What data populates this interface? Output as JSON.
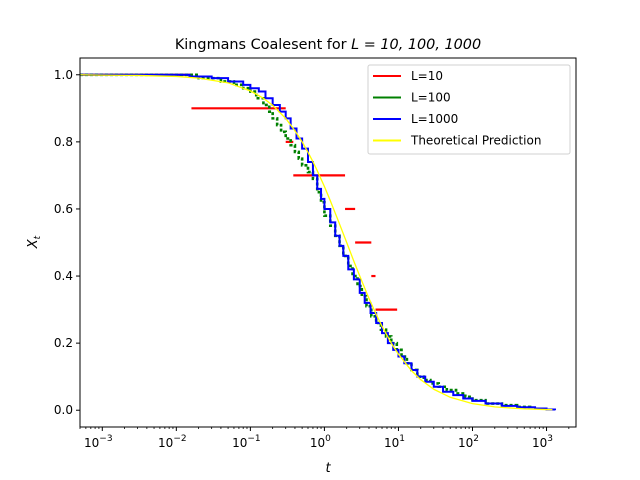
{
  "chart_data": {
    "type": "line",
    "title_prefix": "Kingmans Coalesent for ",
    "title_math": "L = 10, 100, 1000",
    "xlabel": "t",
    "ylabel_main": "X",
    "ylabel_sub": "t",
    "x_scale": "log",
    "xlim": [
      0.0005,
      2500
    ],
    "ylim": [
      -0.05,
      1.05
    ],
    "y_ticks": [
      0.0,
      0.2,
      0.4,
      0.6,
      0.8,
      1.0
    ],
    "y_tick_labels": [
      "0.0",
      "0.2",
      "0.4",
      "0.6",
      "0.8",
      "1.0"
    ],
    "x_ticks": [
      0.001,
      0.01,
      0.1,
      1,
      10,
      100,
      1000
    ],
    "x_tick_labels": [
      {
        "base": "10",
        "exp": "−3"
      },
      {
        "base": "10",
        "exp": "−2"
      },
      {
        "base": "10",
        "exp": "−1"
      },
      {
        "base": "10",
        "exp": "0"
      },
      {
        "base": "10",
        "exp": "1"
      },
      {
        "base": "10",
        "exp": "2"
      },
      {
        "base": "10",
        "exp": "3"
      }
    ],
    "grid": false,
    "legend_position": "top-right",
    "series": [
      {
        "name": "L=10",
        "color": "#ff0000",
        "style": "steps",
        "segments": [
          {
            "x0": 0.0005,
            "x1": 0.016,
            "y": 1.0
          },
          {
            "x0": 0.016,
            "x1": 0.3,
            "y": 0.9
          },
          {
            "x0": 0.3,
            "x1": 0.38,
            "y": 0.8
          },
          {
            "x0": 0.38,
            "x1": 1.9,
            "y": 0.7
          },
          {
            "x0": 1.9,
            "x1": 2.6,
            "y": 0.6
          },
          {
            "x0": 2.6,
            "x1": 4.3,
            "y": 0.5
          },
          {
            "x0": 4.3,
            "x1": 4.9,
            "y": 0.4
          },
          {
            "x0": 4.9,
            "x1": 9.6,
            "y": 0.3
          }
        ]
      },
      {
        "name": "L=100",
        "color": "#008000",
        "style": "steps",
        "points": [
          [
            0.0005,
            1.0
          ],
          [
            0.012,
            1.0
          ],
          [
            0.02,
            0.99
          ],
          [
            0.04,
            0.98
          ],
          [
            0.06,
            0.97
          ],
          [
            0.08,
            0.96
          ],
          [
            0.1,
            0.95
          ],
          [
            0.12,
            0.93
          ],
          [
            0.15,
            0.91
          ],
          [
            0.18,
            0.89
          ],
          [
            0.2,
            0.87
          ],
          [
            0.23,
            0.85
          ],
          [
            0.26,
            0.83
          ],
          [
            0.3,
            0.81
          ],
          [
            0.35,
            0.79
          ],
          [
            0.4,
            0.77
          ],
          [
            0.45,
            0.75
          ],
          [
            0.5,
            0.73
          ],
          [
            0.6,
            0.71
          ],
          [
            0.7,
            0.69
          ],
          [
            0.8,
            0.65
          ],
          [
            0.9,
            0.62
          ],
          [
            1.0,
            0.58
          ],
          [
            1.2,
            0.55
          ],
          [
            1.4,
            0.52
          ],
          [
            1.6,
            0.49
          ],
          [
            1.8,
            0.46
          ],
          [
            2.1,
            0.43
          ],
          [
            2.4,
            0.4
          ],
          [
            2.8,
            0.37
          ],
          [
            3.2,
            0.34
          ],
          [
            3.7,
            0.31
          ],
          [
            4.3,
            0.28
          ],
          [
            5.0,
            0.26
          ],
          [
            5.8,
            0.24
          ],
          [
            6.8,
            0.22
          ],
          [
            8.0,
            0.2
          ],
          [
            9.5,
            0.18
          ],
          [
            11,
            0.16
          ],
          [
            13,
            0.14
          ],
          [
            15,
            0.12
          ],
          [
            18,
            0.1
          ],
          [
            22,
            0.09
          ],
          [
            27,
            0.08
          ],
          [
            35,
            0.07
          ],
          [
            45,
            0.06
          ],
          [
            60,
            0.05
          ],
          [
            80,
            0.04
          ],
          [
            100,
            0.03
          ],
          [
            150,
            0.02
          ],
          [
            250,
            0.015
          ],
          [
            400,
            0.01
          ],
          [
            600,
            0.005
          ]
        ]
      },
      {
        "name": "L=1000",
        "color": "#0000ff",
        "style": "steps",
        "points": [
          [
            0.0005,
            1.0
          ],
          [
            0.008,
            1.0
          ],
          [
            0.015,
            0.995
          ],
          [
            0.03,
            0.99
          ],
          [
            0.05,
            0.98
          ],
          [
            0.08,
            0.97
          ],
          [
            0.1,
            0.96
          ],
          [
            0.13,
            0.95
          ],
          [
            0.16,
            0.93
          ],
          [
            0.2,
            0.91
          ],
          [
            0.25,
            0.89
          ],
          [
            0.3,
            0.87
          ],
          [
            0.35,
            0.84
          ],
          [
            0.42,
            0.81
          ],
          [
            0.5,
            0.78
          ],
          [
            0.6,
            0.74
          ],
          [
            0.7,
            0.7
          ],
          [
            0.8,
            0.66
          ],
          [
            0.9,
            0.63
          ],
          [
            1.0,
            0.6
          ],
          [
            1.2,
            0.56
          ],
          [
            1.4,
            0.52
          ],
          [
            1.6,
            0.49
          ],
          [
            1.8,
            0.46
          ],
          [
            2.1,
            0.42
          ],
          [
            2.5,
            0.39
          ],
          [
            3.0,
            0.35
          ],
          [
            3.5,
            0.32
          ],
          [
            4.2,
            0.29
          ],
          [
            5.0,
            0.26
          ],
          [
            6.0,
            0.23
          ],
          [
            7.2,
            0.2
          ],
          [
            8.5,
            0.18
          ],
          [
            10,
            0.16
          ],
          [
            12,
            0.14
          ],
          [
            15,
            0.12
          ],
          [
            18,
            0.1
          ],
          [
            23,
            0.085
          ],
          [
            30,
            0.07
          ],
          [
            40,
            0.055
          ],
          [
            55,
            0.045
          ],
          [
            75,
            0.035
          ],
          [
            100,
            0.028
          ],
          [
            150,
            0.02
          ],
          [
            250,
            0.013
          ],
          [
            400,
            0.009
          ],
          [
            700,
            0.005
          ],
          [
            1000,
            0.002
          ],
          [
            1300,
            0.0
          ]
        ]
      },
      {
        "name": "Theoretical Prediction",
        "color": "#ffff00",
        "style": "line",
        "points": [
          [
            0.0005,
            1.0
          ],
          [
            0.001,
            0.999
          ],
          [
            0.003,
            0.998
          ],
          [
            0.01,
            0.995
          ],
          [
            0.02,
            0.99
          ],
          [
            0.05,
            0.976
          ],
          [
            0.1,
            0.952
          ],
          [
            0.15,
            0.93
          ],
          [
            0.2,
            0.909
          ],
          [
            0.3,
            0.87
          ],
          [
            0.4,
            0.833
          ],
          [
            0.5,
            0.8
          ],
          [
            0.6,
            0.769
          ],
          [
            0.7,
            0.741
          ],
          [
            0.8,
            0.714
          ],
          [
            1.0,
            0.667
          ],
          [
            1.2,
            0.625
          ],
          [
            1.5,
            0.571
          ],
          [
            2.0,
            0.5
          ],
          [
            2.5,
            0.444
          ],
          [
            3.0,
            0.4
          ],
          [
            4.0,
            0.333
          ],
          [
            5.0,
            0.286
          ],
          [
            6.0,
            0.25
          ],
          [
            8.0,
            0.2
          ],
          [
            10,
            0.167
          ],
          [
            15,
            0.118
          ],
          [
            20,
            0.091
          ],
          [
            30,
            0.0625
          ],
          [
            50,
            0.0385
          ],
          [
            100,
            0.0196
          ],
          [
            200,
            0.0099
          ],
          [
            500,
            0.004
          ],
          [
            1000,
            0.002
          ],
          [
            1200,
            0.0017
          ]
        ]
      }
    ]
  }
}
